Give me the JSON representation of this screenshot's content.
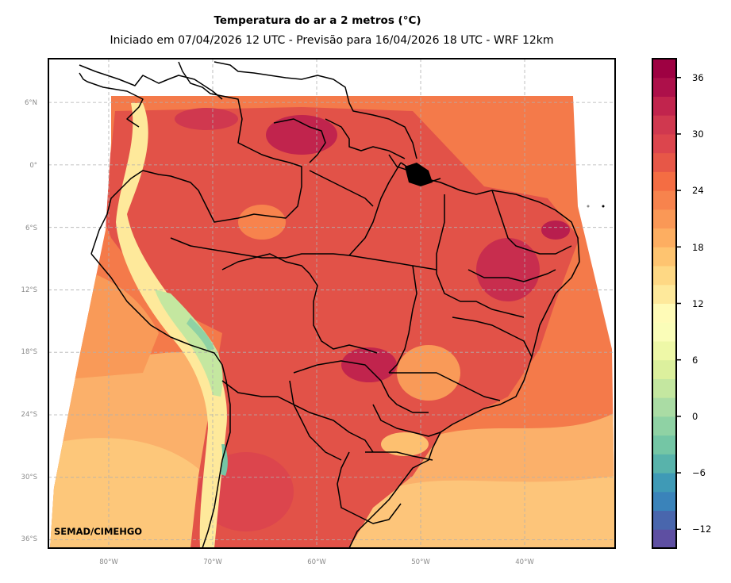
{
  "header": {
    "title": "Temperatura do ar a 2 metros (°C)",
    "subtitle": "Iniciado em 07/04/2026 12 UTC - Previsão para 16/04/2026 18 UTC - WRF 12km"
  },
  "map": {
    "credit": "SEMAD/CIMEHGO",
    "lat_labels": [
      "6°N",
      "0°",
      "6°S",
      "12°S",
      "18°S",
      "24°S",
      "30°S",
      "36°S"
    ],
    "lon_labels": [
      "80°W",
      "70°W",
      "60°W",
      "50°W",
      "40°W"
    ],
    "lat_values": [
      6,
      0,
      -6,
      -12,
      -18,
      -24,
      -30,
      -36
    ],
    "lon_values": [
      -80,
      -70,
      -60,
      -50,
      -40
    ],
    "lon_range": [
      -85.8,
      -31.3
    ],
    "lat_range": [
      -36.8,
      10.2
    ],
    "colors": {
      "border": "#000000",
      "grid": "#b0b0b0",
      "ocean_warm": "#f47a4a",
      "ocean_mild": "#fbb06a",
      "land_hot": "#d9434e",
      "land_very_hot": "#b81e4e",
      "andes_cool": "#f7f4b0",
      "andes_cold": "#a6d9a3"
    }
  },
  "colorbar": {
    "levels_min": -14,
    "levels_max": 38,
    "step": 2,
    "ticks": [
      36,
      30,
      24,
      18,
      12,
      6,
      0,
      -6,
      -12
    ],
    "tick_labels": [
      "36",
      "30",
      "24",
      "18",
      "12",
      "6",
      "0",
      "−6",
      "−12"
    ],
    "colors": [
      "#5e4fa2",
      "#4966ad",
      "#3a83ba",
      "#3f9ab6",
      "#58b3ab",
      "#74c6a5",
      "#8fd2a4",
      "#aadca4",
      "#c4e7a0",
      "#dcf09d",
      "#eef8a7",
      "#fafdb8",
      "#fffbb7",
      "#fee99b",
      "#fed884",
      "#fec470",
      "#fdae61",
      "#fa9856",
      "#f7834d",
      "#f46d43",
      "#e75747",
      "#dc454d",
      "#d0384f",
      "#c1244d",
      "#ad104a",
      "#9e0142"
    ]
  }
}
